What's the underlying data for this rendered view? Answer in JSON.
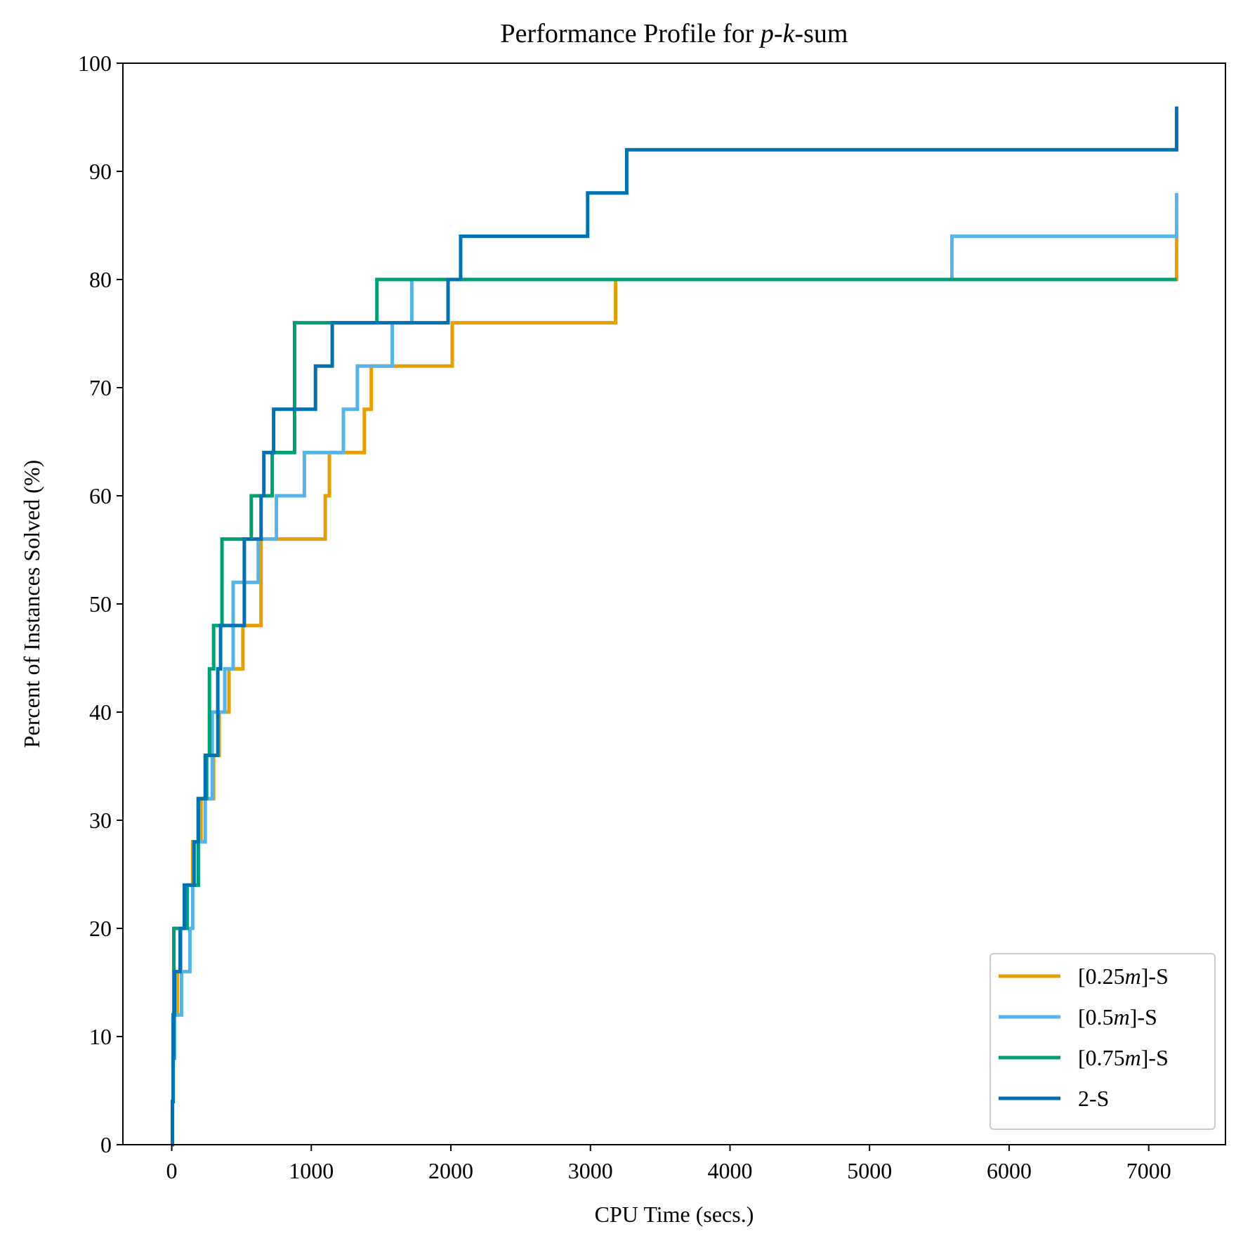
{
  "chart_data": {
    "type": "line",
    "style": "step-post",
    "title": "Performance Profile for ",
    "title_italic_p": "p",
    "title_dash1": "-",
    "title_italic_k": "k",
    "title_suffix": "-sum",
    "xlabel": "CPU Time (secs.)",
    "ylabel": "Percent of Instances Solved (%)",
    "xlim": [
      -350,
      7550
    ],
    "ylim": [
      0,
      100
    ],
    "xticks": [
      0,
      1000,
      2000,
      3000,
      4000,
      5000,
      6000,
      7000
    ],
    "xtick_labels": [
      "0",
      "1000",
      "2000",
      "3000",
      "4000",
      "5000",
      "6000",
      "7000"
    ],
    "yticks": [
      0,
      10,
      20,
      30,
      40,
      50,
      60,
      70,
      80,
      90,
      100
    ],
    "ytick_labels": [
      "0",
      "10",
      "20",
      "30",
      "40",
      "50",
      "60",
      "70",
      "80",
      "90",
      "100"
    ],
    "grid": false,
    "legend_position": "bottom-right",
    "series": [
      {
        "name": "[0.25m]-S",
        "legend_prefix": "[0.25",
        "legend_italic": "m",
        "legend_suffix": "]-S",
        "color": "#E69F00",
        "x": [
          0,
          5,
          10,
          15,
          40,
          65,
          110,
          150,
          210,
          300,
          340,
          410,
          510,
          640,
          1100,
          1130,
          1380,
          1430,
          2010,
          3180,
          7200
        ],
        "y": [
          0,
          4,
          8,
          12,
          16,
          20,
          24,
          28,
          32,
          36,
          40,
          44,
          48,
          56,
          60,
          64,
          68,
          72,
          76,
          80,
          84
        ]
      },
      {
        "name": "[0.5m]-S",
        "legend_prefix": "[0.5",
        "legend_italic": "m",
        "legend_suffix": "]-S",
        "color": "#56B4E9",
        "x": [
          0,
          5,
          10,
          20,
          70,
          130,
          150,
          190,
          240,
          290,
          380,
          440,
          620,
          750,
          950,
          1230,
          1330,
          1580,
          1720,
          5590,
          7200
        ],
        "y": [
          0,
          4,
          8,
          12,
          16,
          20,
          24,
          28,
          32,
          40,
          44,
          52,
          56,
          60,
          64,
          68,
          72,
          76,
          80,
          84,
          88
        ]
      },
      {
        "name": "[0.75m]-S",
        "legend_prefix": "[0.75",
        "legend_italic": "m",
        "legend_suffix": "]-S",
        "color": "#009E73",
        "x": [
          0,
          5,
          10,
          15,
          110,
          190,
          250,
          270,
          300,
          360,
          570,
          720,
          880,
          1470,
          7200
        ],
        "y": [
          0,
          4,
          8,
          20,
          24,
          32,
          36,
          44,
          48,
          56,
          60,
          64,
          76,
          80,
          80
        ]
      },
      {
        "name": "2-S",
        "legend_prefix": "2-S",
        "legend_italic": "",
        "legend_suffix": "",
        "color": "#0072B2",
        "x": [
          0,
          5,
          10,
          20,
          60,
          90,
          160,
          190,
          240,
          330,
          350,
          520,
          640,
          660,
          730,
          1030,
          1150,
          1980,
          2070,
          2980,
          3260,
          7200
        ],
        "y": [
          0,
          4,
          12,
          16,
          20,
          24,
          28,
          32,
          36,
          44,
          48,
          56,
          60,
          64,
          68,
          72,
          76,
          80,
          84,
          88,
          92,
          96
        ]
      }
    ]
  }
}
